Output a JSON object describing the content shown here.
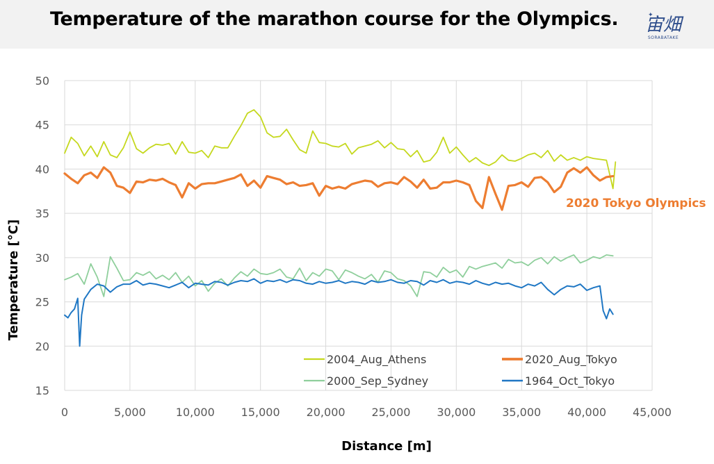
{
  "header": {
    "title": "Temperature of the marathon course for the Olympics.",
    "logo_text": "宙畑",
    "logo_subtext": "SORABATAKE",
    "logo_color": "#2f4e8c"
  },
  "chart_data": {
    "type": "line",
    "title": "Temperature of the marathon course for the Olympics.",
    "xlabel": "Distance [m]",
    "ylabel": "Temperature [°C]",
    "xlim": [
      0,
      45000
    ],
    "ylim": [
      15,
      50
    ],
    "x_ticks": [
      0,
      5000,
      10000,
      15000,
      20000,
      25000,
      30000,
      35000,
      40000,
      45000
    ],
    "x_tick_labels": [
      "0",
      "5,000",
      "10,000",
      "15,000",
      "20,000",
      "25,000",
      "30,000",
      "35,000",
      "40,000",
      "45,000"
    ],
    "y_ticks": [
      15,
      20,
      25,
      30,
      35,
      40,
      45,
      50
    ],
    "y_tick_labels": [
      "15",
      "20",
      "25",
      "30",
      "35",
      "40",
      "45",
      "50"
    ],
    "grid": true,
    "legend_position": "bottom-right inside plot",
    "annotation": "2020 Tokyo Olympics",
    "series": [
      {
        "name": "2004_Aug_Athens",
        "color": "#c5d81e",
        "width": 1.8,
        "x": [
          0,
          500,
          1000,
          1500,
          2000,
          2500,
          3000,
          3500,
          4000,
          4500,
          5000,
          5500,
          6000,
          6500,
          7000,
          7500,
          8000,
          8500,
          9000,
          9500,
          10000,
          10500,
          11000,
          11500,
          12000,
          12500,
          13000,
          13500,
          14000,
          14500,
          15000,
          15500,
          16000,
          16500,
          17000,
          17500,
          18000,
          18500,
          19000,
          19500,
          20000,
          20500,
          21000,
          21500,
          22000,
          22500,
          23000,
          23500,
          24000,
          24500,
          25000,
          25500,
          26000,
          26500,
          27000,
          27500,
          28000,
          28500,
          29000,
          29500,
          30000,
          30500,
          31000,
          31500,
          32000,
          32500,
          33000,
          33500,
          34000,
          34500,
          35000,
          35500,
          36000,
          36500,
          37000,
          37500,
          38000,
          38500,
          39000,
          39500,
          40000,
          40500,
          41000,
          41500,
          42000,
          42195
        ],
        "y": [
          41.8,
          43.6,
          42.9,
          41.5,
          42.6,
          41.4,
          43.1,
          41.6,
          41.3,
          42.4,
          44.2,
          42.3,
          41.8,
          42.4,
          42.8,
          42.7,
          42.9,
          41.7,
          43.1,
          41.9,
          41.8,
          42.1,
          41.3,
          42.6,
          42.4,
          42.4,
          43.7,
          44.9,
          46.3,
          46.7,
          45.9,
          44.1,
          43.6,
          43.7,
          44.5,
          43.3,
          42.2,
          41.8,
          44.3,
          43.0,
          42.9,
          42.6,
          42.5,
          42.9,
          41.7,
          42.4,
          42.6,
          42.8,
          43.2,
          42.4,
          43.0,
          42.3,
          42.2,
          41.4,
          42.1,
          40.8,
          41.0,
          41.9,
          43.6,
          41.8,
          42.5,
          41.6,
          40.8,
          41.3,
          40.7,
          40.4,
          40.8,
          41.6,
          41.0,
          40.9,
          41.2,
          41.6,
          41.8,
          41.3,
          42.1,
          40.9,
          41.6,
          41.0,
          41.3,
          41.0,
          41.4,
          41.2,
          41.1,
          41.0,
          37.8,
          40.8
        ]
      },
      {
        "name": "2020_Aug_Tokyo",
        "color": "#ed7d31",
        "width": 3.2,
        "x": [
          0,
          500,
          1000,
          1500,
          2000,
          2500,
          3000,
          3500,
          4000,
          4500,
          5000,
          5500,
          6000,
          6500,
          7000,
          7500,
          8000,
          8500,
          9000,
          9500,
          10000,
          10500,
          11000,
          11500,
          12000,
          12500,
          13000,
          13500,
          14000,
          14500,
          15000,
          15500,
          16000,
          16500,
          17000,
          17500,
          18000,
          18500,
          19000,
          19500,
          20000,
          20500,
          21000,
          21500,
          22000,
          22500,
          23000,
          23500,
          24000,
          24500,
          25000,
          25500,
          26000,
          26500,
          27000,
          27500,
          28000,
          28500,
          29000,
          29500,
          30000,
          30500,
          31000,
          31500,
          32000,
          32500,
          33000,
          33500,
          34000,
          34500,
          35000,
          35500,
          36000,
          36500,
          37000,
          37500,
          38000,
          38500,
          39000,
          39500,
          40000,
          40500,
          41000,
          41500,
          42000
        ],
        "y": [
          39.5,
          38.9,
          38.4,
          39.3,
          39.6,
          39.0,
          40.2,
          39.6,
          38.1,
          37.9,
          37.3,
          38.6,
          38.5,
          38.8,
          38.7,
          38.9,
          38.5,
          38.2,
          36.8,
          38.4,
          37.8,
          38.3,
          38.4,
          38.4,
          38.6,
          38.8,
          39.0,
          39.4,
          38.1,
          38.7,
          37.9,
          39.2,
          39.0,
          38.8,
          38.3,
          38.5,
          38.1,
          38.2,
          38.4,
          37.0,
          38.1,
          37.8,
          38.0,
          37.8,
          38.3,
          38.5,
          38.7,
          38.6,
          38.0,
          38.4,
          38.5,
          38.3,
          39.1,
          38.6,
          37.9,
          38.8,
          37.8,
          37.9,
          38.5,
          38.5,
          38.7,
          38.5,
          38.2,
          36.4,
          35.6,
          39.1,
          37.2,
          35.4,
          38.1,
          38.2,
          38.5,
          38.0,
          39.0,
          39.1,
          38.5,
          37.4,
          38.0,
          39.6,
          40.1,
          39.6,
          40.2,
          39.3,
          38.7,
          39.1,
          39.2
        ]
      },
      {
        "name": "2000_Sep_Sydney",
        "color": "#8fcf9c",
        "width": 1.8,
        "x": [
          0,
          500,
          1000,
          1500,
          2000,
          2500,
          3000,
          3500,
          4000,
          4500,
          5000,
          5500,
          6000,
          6500,
          7000,
          7500,
          8000,
          8500,
          9000,
          9500,
          10000,
          10500,
          11000,
          11500,
          12000,
          12500,
          13000,
          13500,
          14000,
          14500,
          15000,
          15500,
          16000,
          16500,
          17000,
          17500,
          18000,
          18500,
          19000,
          19500,
          20000,
          20500,
          21000,
          21500,
          22000,
          22500,
          23000,
          23500,
          24000,
          24500,
          25000,
          25500,
          26000,
          26500,
          27000,
          27500,
          28000,
          28500,
          29000,
          29500,
          30000,
          30500,
          31000,
          31500,
          32000,
          32500,
          33000,
          33500,
          34000,
          34500,
          35000,
          35500,
          36000,
          36500,
          37000,
          37500,
          38000,
          38500,
          39000,
          39500,
          40000,
          40500,
          41000,
          41500,
          42000
        ],
        "y": [
          27.5,
          27.8,
          28.2,
          27.0,
          29.3,
          27.8,
          25.6,
          30.1,
          28.8,
          27.4,
          27.5,
          28.3,
          28.0,
          28.4,
          27.6,
          28.0,
          27.5,
          28.3,
          27.2,
          27.9,
          26.8,
          27.4,
          26.2,
          27.1,
          27.6,
          26.8,
          27.7,
          28.4,
          27.9,
          28.7,
          28.2,
          28.1,
          28.3,
          28.7,
          27.8,
          27.6,
          28.8,
          27.4,
          28.3,
          27.9,
          28.7,
          28.5,
          27.5,
          28.6,
          28.3,
          27.9,
          27.6,
          28.1,
          27.2,
          28.5,
          28.3,
          27.6,
          27.4,
          26.8,
          25.6,
          28.4,
          28.3,
          27.8,
          28.9,
          28.3,
          28.6,
          27.8,
          29.0,
          28.7,
          29.0,
          29.2,
          29.4,
          28.8,
          29.8,
          29.4,
          29.5,
          29.1,
          29.7,
          30.0,
          29.3,
          30.1,
          29.6,
          30.0,
          30.3,
          29.4,
          29.7,
          30.1,
          29.9,
          30.3,
          30.2
        ]
      },
      {
        "name": "1964_Oct_Tokyo",
        "color": "#1f77c4",
        "width": 2,
        "x": [
          0,
          250,
          500,
          750,
          1000,
          1150,
          1300,
          1500,
          2000,
          2500,
          3000,
          3500,
          4000,
          4500,
          5000,
          5500,
          6000,
          6500,
          7000,
          7500,
          8000,
          8500,
          9000,
          9500,
          10000,
          10500,
          11000,
          11500,
          12000,
          12500,
          13000,
          13500,
          14000,
          14500,
          15000,
          15500,
          16000,
          16500,
          17000,
          17500,
          18000,
          18500,
          19000,
          19500,
          20000,
          20500,
          21000,
          21500,
          22000,
          22500,
          23000,
          23500,
          24000,
          24500,
          25000,
          25500,
          26000,
          26500,
          27000,
          27500,
          28000,
          28500,
          29000,
          29500,
          30000,
          30500,
          31000,
          31500,
          32000,
          32500,
          33000,
          33500,
          34000,
          34500,
          35000,
          35500,
          36000,
          36500,
          37000,
          37500,
          38000,
          38500,
          39000,
          39500,
          40000,
          40500,
          41000,
          41250,
          41500,
          41750,
          42000
        ],
        "y": [
          23.5,
          23.2,
          23.8,
          24.2,
          25.4,
          20.0,
          23.5,
          25.3,
          26.4,
          27.0,
          26.8,
          26.1,
          26.7,
          27.0,
          27.0,
          27.4,
          26.9,
          27.1,
          27.0,
          26.8,
          26.6,
          26.9,
          27.2,
          26.6,
          27.1,
          27.0,
          26.9,
          27.3,
          27.2,
          26.9,
          27.2,
          27.4,
          27.3,
          27.6,
          27.1,
          27.4,
          27.3,
          27.5,
          27.2,
          27.5,
          27.4,
          27.1,
          27.0,
          27.3,
          27.1,
          27.2,
          27.4,
          27.1,
          27.3,
          27.2,
          27.0,
          27.4,
          27.2,
          27.3,
          27.5,
          27.2,
          27.1,
          27.4,
          27.3,
          26.9,
          27.4,
          27.2,
          27.5,
          27.1,
          27.3,
          27.2,
          27.0,
          27.4,
          27.1,
          26.9,
          27.2,
          27.0,
          27.1,
          26.8,
          26.6,
          27.0,
          26.8,
          27.2,
          26.4,
          25.8,
          26.4,
          26.8,
          26.7,
          27.0,
          26.3,
          26.6,
          26.8,
          24.0,
          23.1,
          24.2,
          23.6
        ]
      }
    ]
  }
}
